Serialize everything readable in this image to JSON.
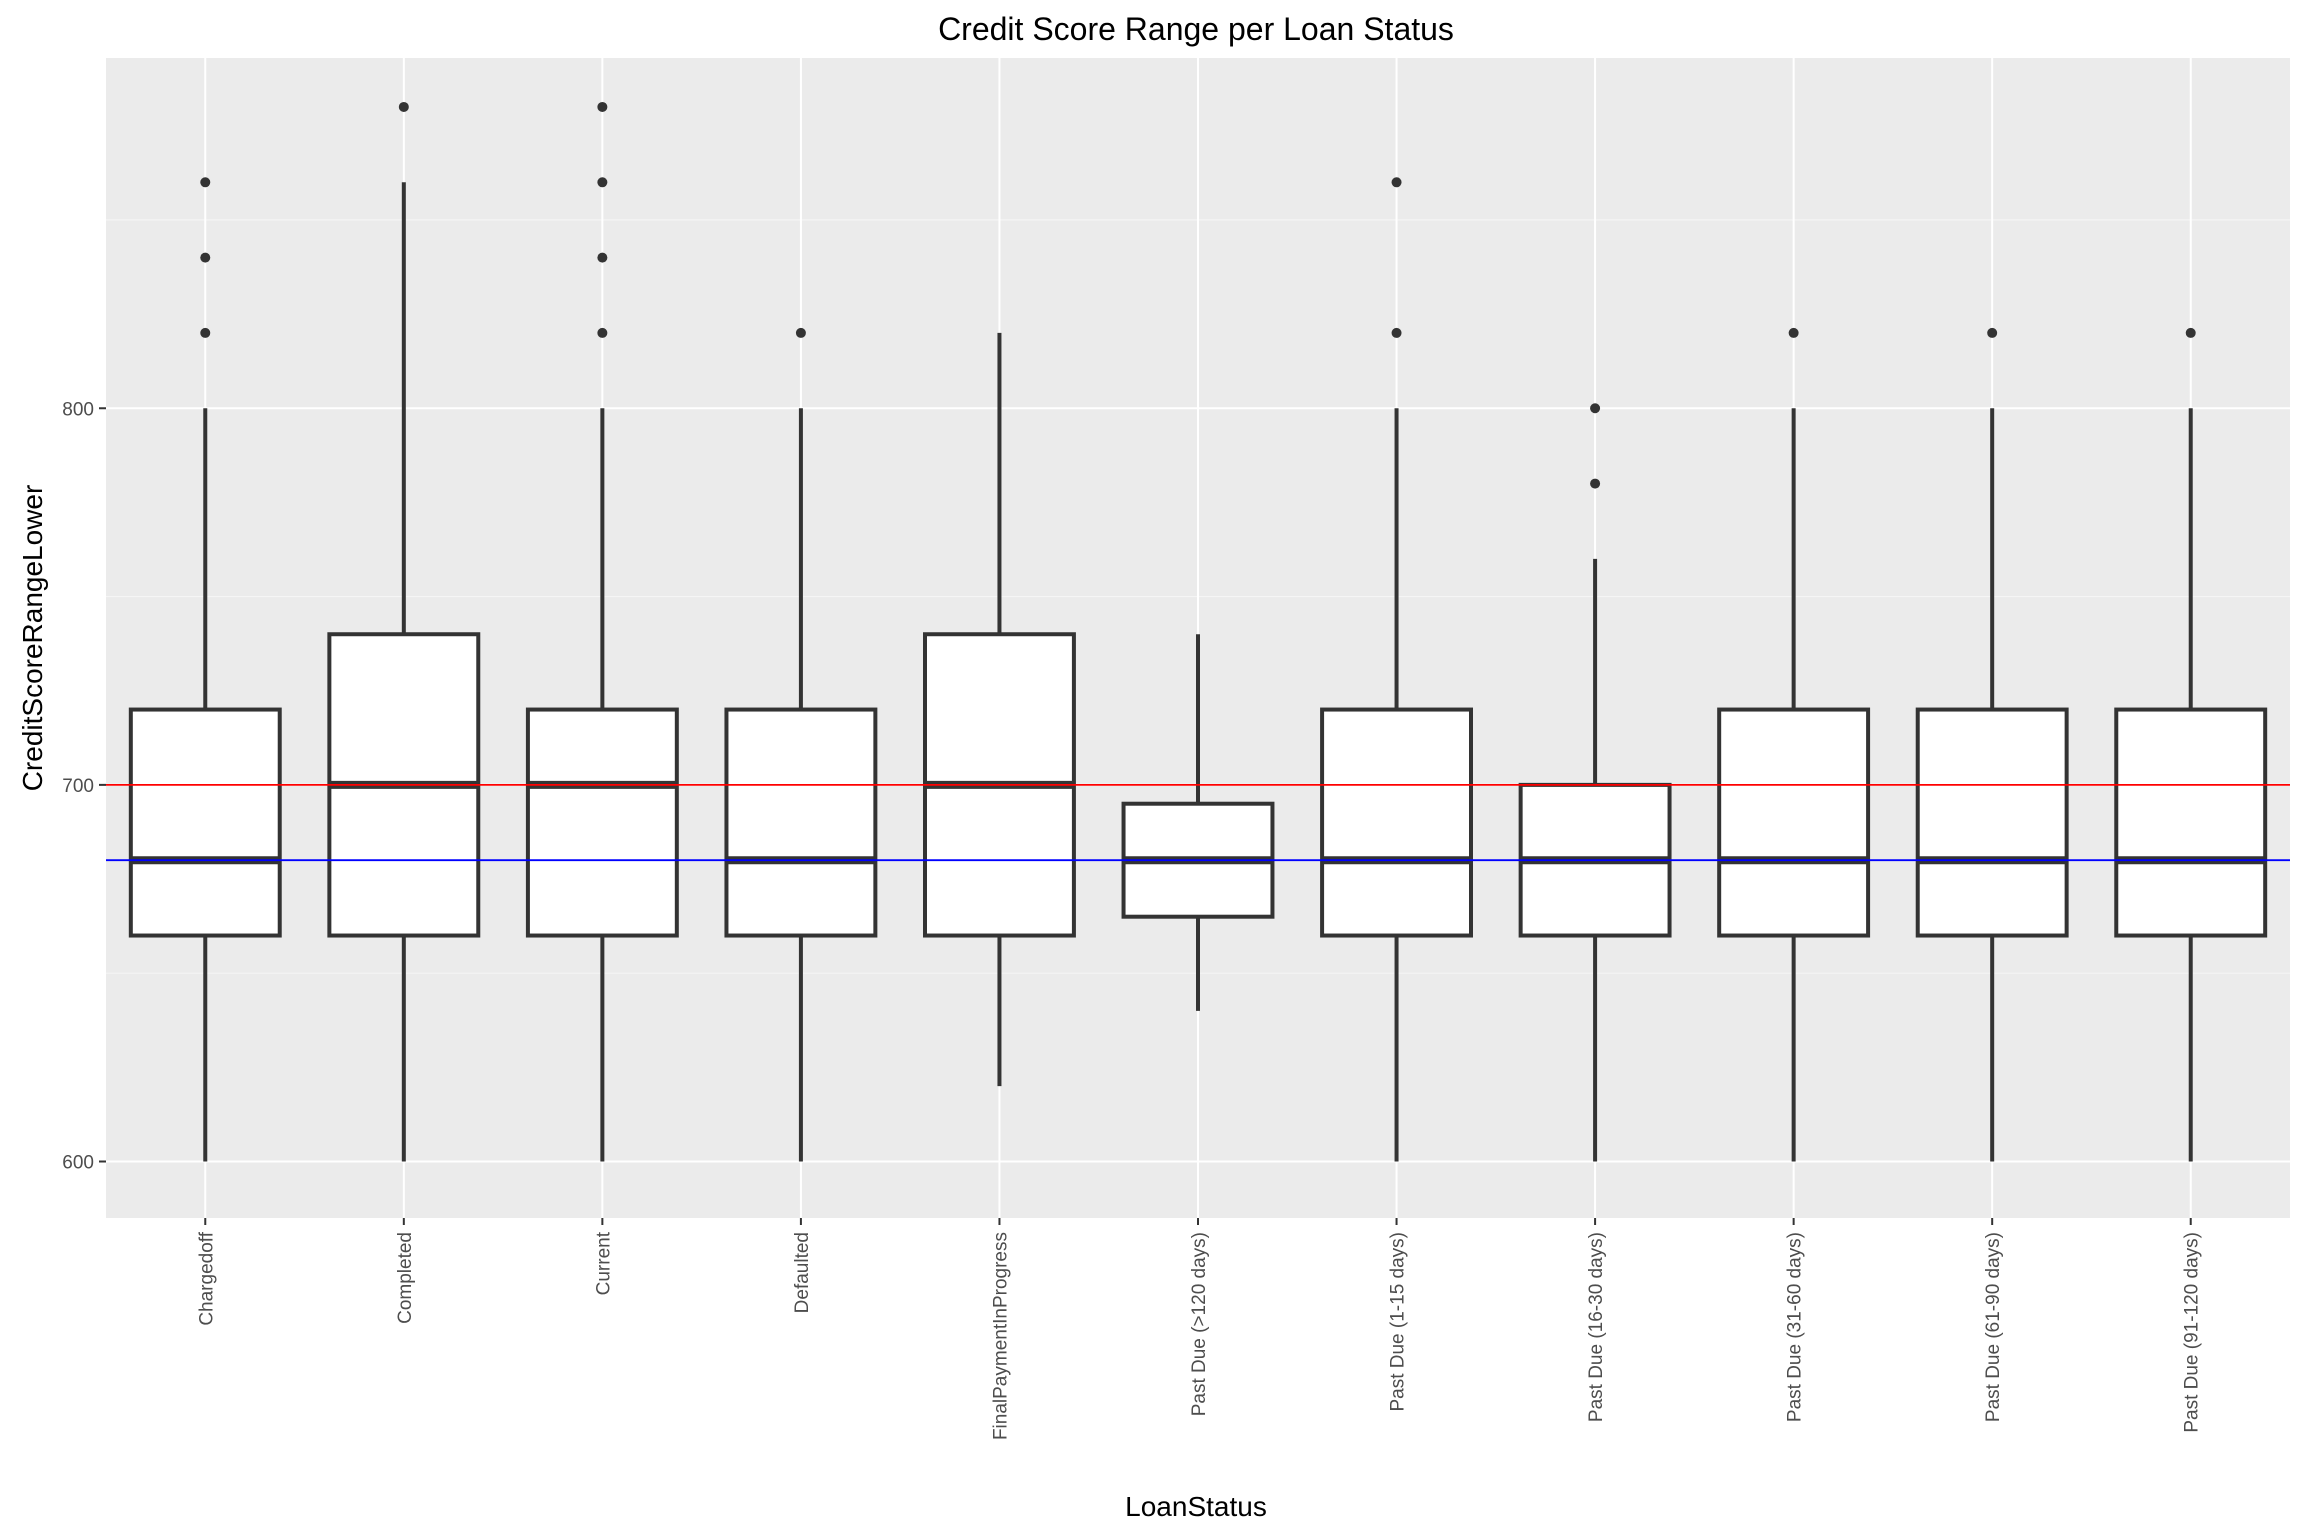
{
  "chart_data": {
    "type": "boxplot",
    "title": "Credit Score Range per Loan Status",
    "xlabel": "LoanStatus",
    "ylabel": "CreditScoreRangeLower",
    "ylim": [
      585,
      893
    ],
    "yticks": [
      600,
      700,
      800
    ],
    "grid": true,
    "legend": "none",
    "colors": {
      "panel": "#ebebeb",
      "grid_major": "#ffffff",
      "grid_minor": "#f5f5f5",
      "box_fill": "#ffffff",
      "box_line": "#333333",
      "reference_red": "#ff0000",
      "reference_blue": "#0000ff"
    },
    "reference_lines": [
      {
        "value": 700,
        "color": "#ff0000"
      },
      {
        "value": 680,
        "color": "#0000ff"
      }
    ],
    "categories": [
      "Chargedoff",
      "Completed",
      "Current",
      "Defaulted",
      "FinalPaymentInProgress",
      "Past Due (>120 days)",
      "Past Due (1-15 days)",
      "Past Due (16-30 days)",
      "Past Due (31-60 days)",
      "Past Due (61-90 days)",
      "Past Due (91-120 days)"
    ],
    "boxes": [
      {
        "whisker_low": 600,
        "q1": 660,
        "median": 680,
        "q3": 720,
        "whisker_high": 800,
        "outliers": [
          820,
          840,
          860
        ]
      },
      {
        "whisker_low": 600,
        "q1": 660,
        "median": 700,
        "q3": 740,
        "whisker_high": 860,
        "outliers": [
          880
        ]
      },
      {
        "whisker_low": 600,
        "q1": 660,
        "median": 700,
        "q3": 720,
        "whisker_high": 800,
        "outliers": [
          820,
          840,
          860,
          880
        ]
      },
      {
        "whisker_low": 600,
        "q1": 660,
        "median": 680,
        "q3": 720,
        "whisker_high": 800,
        "outliers": [
          820
        ]
      },
      {
        "whisker_low": 620,
        "q1": 660,
        "median": 700,
        "q3": 740,
        "whisker_high": 820,
        "outliers": []
      },
      {
        "whisker_low": 640,
        "q1": 665,
        "median": 680,
        "q3": 695,
        "whisker_high": 740,
        "outliers": []
      },
      {
        "whisker_low": 600,
        "q1": 660,
        "median": 680,
        "q3": 720,
        "whisker_high": 800,
        "outliers": [
          820,
          860
        ]
      },
      {
        "whisker_low": 600,
        "q1": 660,
        "median": 680,
        "q3": 700,
        "whisker_high": 760,
        "outliers": [
          780,
          800
        ]
      },
      {
        "whisker_low": 600,
        "q1": 660,
        "median": 680,
        "q3": 720,
        "whisker_high": 800,
        "outliers": [
          820
        ]
      },
      {
        "whisker_low": 600,
        "q1": 660,
        "median": 680,
        "q3": 720,
        "whisker_high": 800,
        "outliers": [
          820
        ]
      },
      {
        "whisker_low": 600,
        "q1": 660,
        "median": 680,
        "q3": 720,
        "whisker_high": 800,
        "outliers": [
          820
        ]
      }
    ]
  }
}
